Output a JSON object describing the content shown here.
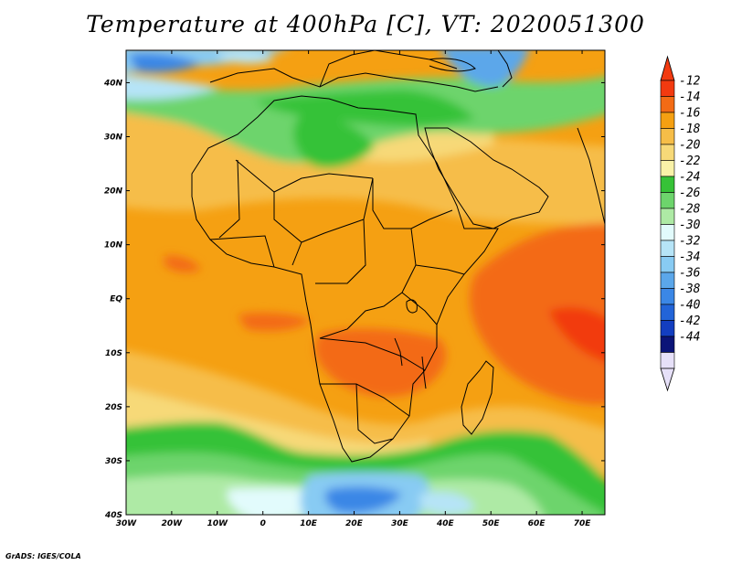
{
  "title": "Temperature at 400hPa [C], VT: 2020051300",
  "credit": "GrADS: IGES/COLA",
  "map": {
    "projection": "lat-lon",
    "lon_range": [
      -30,
      75
    ],
    "lat_range": [
      -40,
      46
    ],
    "lon_ticks": [
      {
        "value": -30,
        "label": "30W"
      },
      {
        "value": -20,
        "label": "20W"
      },
      {
        "value": -10,
        "label": "10W"
      },
      {
        "value": 0,
        "label": "0"
      },
      {
        "value": 10,
        "label": "10E"
      },
      {
        "value": 20,
        "label": "20E"
      },
      {
        "value": 30,
        "label": "30E"
      },
      {
        "value": 40,
        "label": "40E"
      },
      {
        "value": 50,
        "label": "50E"
      },
      {
        "value": 60,
        "label": "60E"
      },
      {
        "value": 70,
        "label": "70E"
      }
    ],
    "lat_ticks": [
      {
        "value": 40,
        "label": "40N"
      },
      {
        "value": 30,
        "label": "30N"
      },
      {
        "value": 20,
        "label": "20N"
      },
      {
        "value": 10,
        "label": "10N"
      },
      {
        "value": 0,
        "label": "EQ"
      },
      {
        "value": -10,
        "label": "10S"
      },
      {
        "value": -20,
        "label": "20S"
      },
      {
        "value": -30,
        "label": "30S"
      },
      {
        "value": -40,
        "label": "40S"
      }
    ]
  },
  "colorbar": {
    "labels": [
      "-12",
      "-14",
      "-16",
      "-18",
      "-20",
      "-22",
      "-24",
      "-26",
      "-28",
      "-30",
      "-32",
      "-34",
      "-36",
      "-38",
      "-40",
      "-42",
      "-44"
    ],
    "colors": [
      "#f23a10",
      "#f36b15",
      "#f5a012",
      "#f6bd48",
      "#f7d978",
      "#f9f2a8",
      "#36c237",
      "#6dd46c",
      "#aeeaa5",
      "#e2fbfc",
      "#b6e4f7",
      "#88cbf3",
      "#5ba7ea",
      "#3b87e6",
      "#2264d8",
      "#133ec0",
      "#0b1478",
      "#e6e0f8"
    ],
    "top_triangle": "#f23a10",
    "bottom_triangle": "#e6e0f8"
  }
}
